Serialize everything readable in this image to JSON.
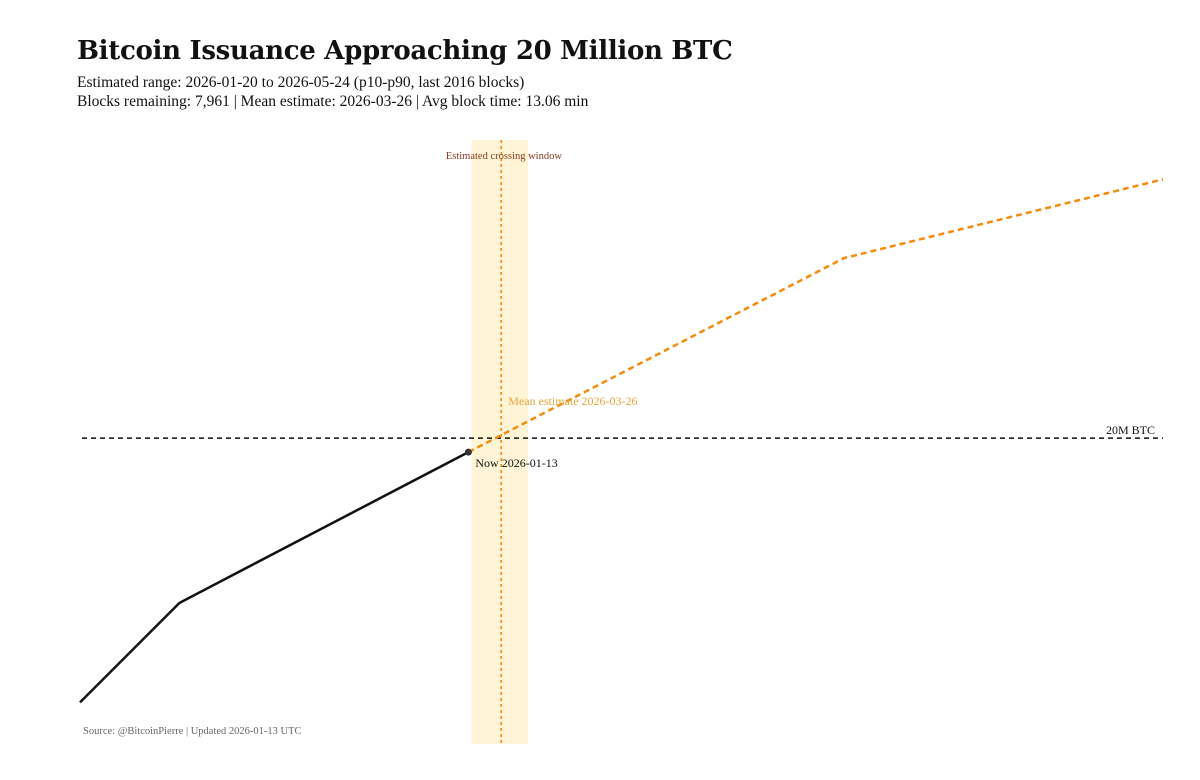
{
  "title": "Bitcoin Issuance Approaching 20 Million BTC",
  "subtitle_line1": "Estimated range: 2026-01-20 to 2026-05-24 (p10-p90, last 2016 blocks)",
  "subtitle_line2": "Blocks remaining: 7,961 | Mean estimate: 2026-03-26 | Avg block time: 13.06 min",
  "source": "Source: @BitcoinPierre | Updated 2026-01-13 UTC",
  "chart_data": {
    "type": "line",
    "title": "Bitcoin Issuance Approaching 20 Million BTC",
    "xlabel": "",
    "ylabel": "",
    "x_axis_type": "date",
    "xlim": [
      "2023-09-15",
      "2030-03-15"
    ],
    "ylim_millions_btc": [
      19.456,
      20.53
    ],
    "grid": false,
    "axes_visible": false,
    "series": [
      {
        "style": "solid",
        "color": "#111111",
        "x": [
          "2023-09-15",
          "2024-04-20",
          "2026-01-13"
        ],
        "y_millions_btc": [
          19.53,
          19.707,
          19.975
        ]
      },
      {
        "style": "dashed",
        "color": "#f28c0f",
        "x": [
          "2026-01-13",
          "2028-04-15",
          "2030-03-15"
        ],
        "y_millions_btc": [
          19.975,
          20.32,
          20.46
        ]
      }
    ],
    "reference_line": {
      "y_millions_btc": 20.0,
      "label": "20M BTC",
      "color": "#111111",
      "style": "dashed"
    },
    "crossing_window": {
      "start": "2026-01-20",
      "end": "2026-05-24",
      "label": "Estimated crossing window",
      "fill": "#fff5d6",
      "label_color": "#8b3a1a"
    },
    "mean_estimate": {
      "date": "2026-03-26",
      "label": "Mean estimate 2026-03-26",
      "color": "#f28c0f",
      "label_color": "#e8a33a"
    },
    "now_marker": {
      "date": "2026-01-13",
      "y_millions_btc": 19.975,
      "label": "Now 2026-01-13"
    }
  }
}
